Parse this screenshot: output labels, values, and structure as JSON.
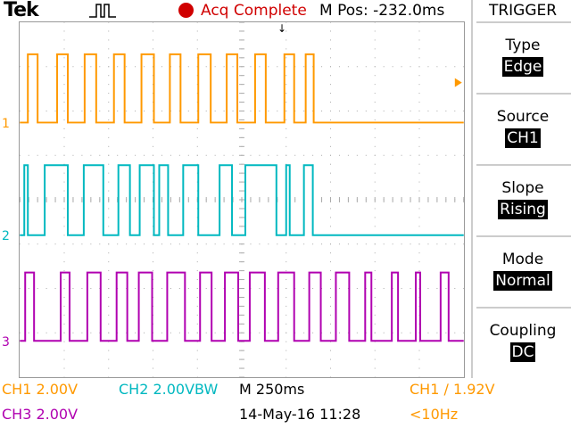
{
  "header": {
    "brand": "Tek",
    "acq_status": "Acq Complete",
    "m_pos": "M Pos: -232.0ms",
    "trigger_position_marker": "↓"
  },
  "channels": [
    {
      "marker": "1",
      "color": "#ff9900"
    },
    {
      "marker": "2",
      "color": "#00b8c0"
    },
    {
      "marker": "3",
      "color": "#b000b0"
    }
  ],
  "trigger_panel": {
    "title": "TRIGGER",
    "items": [
      {
        "label": "Type",
        "value": "Edge"
      },
      {
        "label": "Source",
        "value": "CH1"
      },
      {
        "label": "Slope",
        "value": "Rising"
      },
      {
        "label": "Mode",
        "value": "Normal"
      },
      {
        "label": "Coupling",
        "value": "DC"
      }
    ]
  },
  "status_bar": {
    "ch1_scale": "CH1  2.00V",
    "ch2_scale": "CH2  2.00VBW",
    "timebase": "M 250ms",
    "trigger_setting": "CH1 ∕ 1.92V",
    "ch3_scale": "CH3  2.00V",
    "date_time": "14-May-16 11:28",
    "frequency": "<10Hz"
  },
  "colors": {
    "ch1": "#ff9900",
    "ch2": "#00b8c0",
    "ch3": "#b000b0",
    "acq": "#d00000"
  }
}
